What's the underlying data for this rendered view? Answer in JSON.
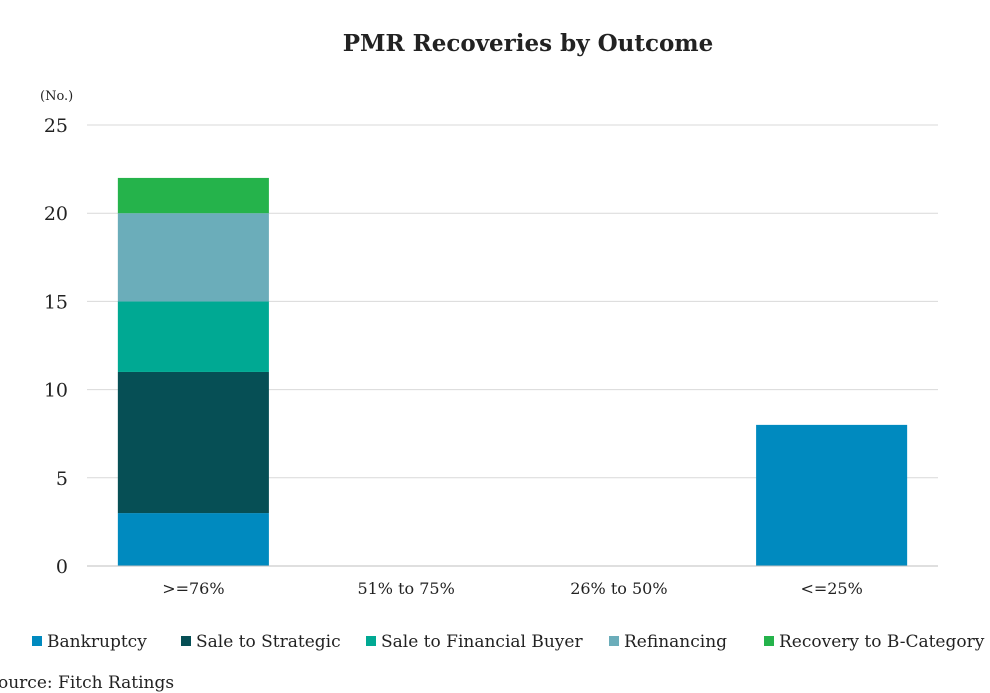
{
  "chart_data": {
    "type": "bar",
    "stacked": true,
    "title": "PMR Recoveries by Outcome",
    "ylabel": "(No.)",
    "ylim": [
      0,
      25
    ],
    "yticks": [
      0,
      5,
      10,
      15,
      20,
      25
    ],
    "grid": true,
    "legend_position": "bottom",
    "categories": [
      ">=76%",
      "51% to 75%",
      "26% to 50%",
      "<=25%"
    ],
    "series": [
      {
        "name": "Bankruptcy",
        "color": "#008ABF",
        "values": [
          3,
          0,
          0,
          8
        ]
      },
      {
        "name": "Sale to Strategic",
        "color": "#064F55",
        "values": [
          8,
          0,
          0,
          0
        ]
      },
      {
        "name": "Sale to Financial Buyer",
        "color": "#00A993",
        "values": [
          4,
          0,
          0,
          0
        ]
      },
      {
        "name": "Refinancing",
        "color": "#6BADBA",
        "values": [
          5,
          0,
          0,
          0
        ]
      },
      {
        "name": "Recovery to B-Category",
        "color": "#25B34B",
        "values": [
          2,
          0,
          0,
          0
        ]
      }
    ]
  },
  "source": "ource: Fitch Ratings"
}
